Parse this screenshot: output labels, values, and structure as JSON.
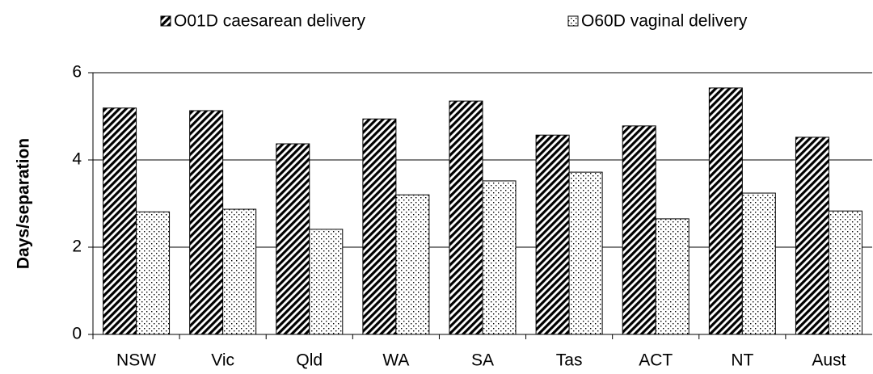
{
  "chart_data": {
    "type": "bar",
    "y_label": "Days/separation",
    "categories": [
      "NSW",
      "Vic",
      "Qld",
      "WA",
      "SA",
      "Tas",
      "ACT",
      "NT",
      "Aust"
    ],
    "series": [
      {
        "name": "O01D caesarean delivery",
        "color": "#000000",
        "pattern": "diagonal",
        "values": [
          5.19,
          5.13,
          4.37,
          4.94,
          5.35,
          4.57,
          4.78,
          5.65,
          4.52
        ]
      },
      {
        "name": "O60D vaginal delivery",
        "color": "#000000",
        "pattern": "dots",
        "values": [
          2.81,
          2.87,
          2.41,
          3.2,
          3.52,
          3.72,
          2.65,
          3.24,
          2.83
        ]
      }
    ],
    "ylim": [
      0,
      6
    ],
    "yticks": [
      0,
      2,
      4,
      6
    ],
    "grid": true
  }
}
